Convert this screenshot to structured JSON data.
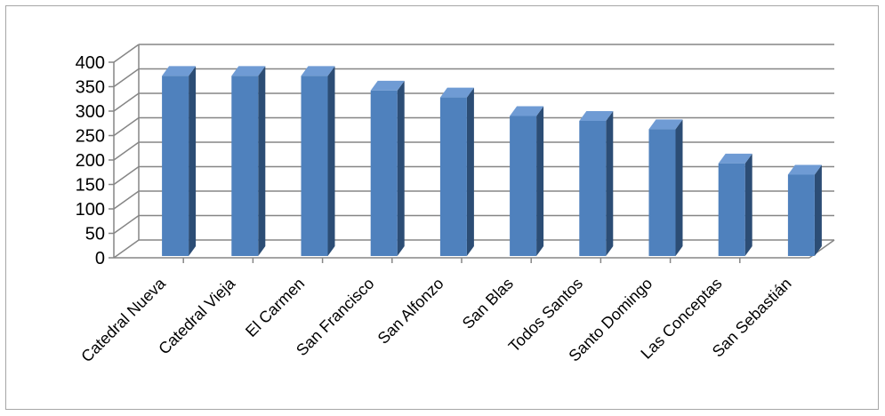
{
  "chart_data": {
    "type": "bar",
    "style": "3d-clustered-column",
    "categories": [
      "Catedral Nueva",
      "Catedral Vieja",
      "El Carmen",
      "San Francisco",
      "San Alfonzo",
      "San Blas",
      "Todos Santos",
      "Santo Domingo",
      "Las Conceptas",
      "San Sebastián"
    ],
    "values": [
      372,
      372,
      372,
      342,
      328,
      290,
      280,
      263,
      193,
      170
    ],
    "title": "",
    "xlabel": "",
    "ylabel": "",
    "ylim": [
      0,
      400
    ],
    "yticks": [
      0,
      50,
      100,
      150,
      200,
      250,
      300,
      350,
      400
    ],
    "grid": true,
    "legend": "none",
    "colors": {
      "bar_front": "#4f81bd",
      "bar_side": "#2c4d75",
      "bar_top": "#6f9bd4",
      "gridline": "#868686",
      "frame": "#a6a6a6"
    }
  }
}
